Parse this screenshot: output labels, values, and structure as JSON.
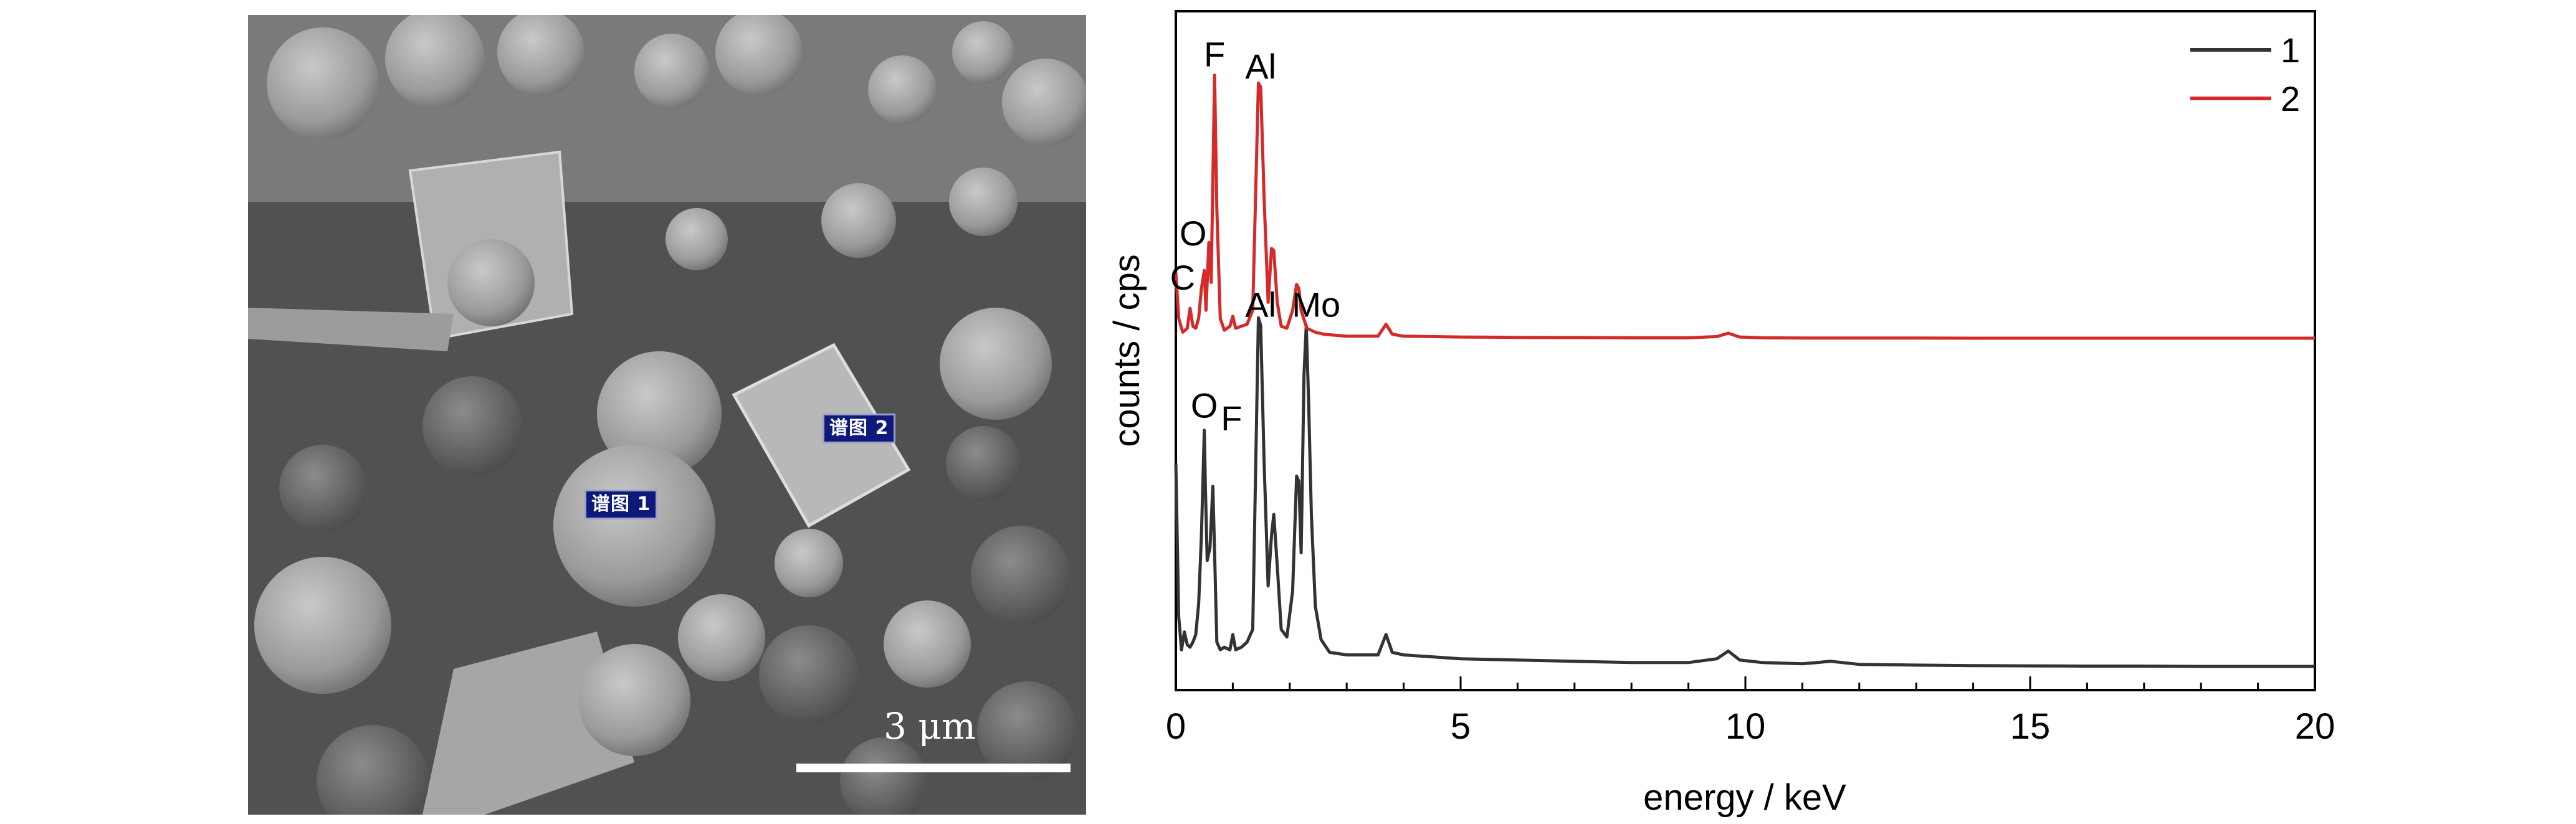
{
  "sem_image": {
    "spectrum_tags": [
      "谱图 1",
      "谱图 2"
    ],
    "scale_bar_label": "3 μm"
  },
  "chart_data": {
    "type": "line",
    "xlabel": "energy / keV",
    "ylabel": "counts / cps",
    "xlim": [
      0,
      20
    ],
    "xticks": [
      "0",
      "5",
      "10",
      "15",
      "20"
    ],
    "yticks_labeled": false,
    "grid": false,
    "legend_position": "top-right",
    "series": [
      {
        "name": "1",
        "color": "#333333",
        "x": [
          0.0,
          0.05,
          0.1,
          0.15,
          0.2,
          0.25,
          0.3,
          0.35,
          0.4,
          0.45,
          0.5,
          0.52,
          0.55,
          0.6,
          0.65,
          0.68,
          0.72,
          0.78,
          0.85,
          0.95,
          1.0,
          1.05,
          1.15,
          1.25,
          1.35,
          1.45,
          1.49,
          1.55,
          1.62,
          1.68,
          1.72,
          1.78,
          1.85,
          1.95,
          2.05,
          2.12,
          2.16,
          2.2,
          2.25,
          2.29,
          2.33,
          2.38,
          2.45,
          2.55,
          2.7,
          3.0,
          3.4,
          3.55,
          3.69,
          3.8,
          4.0,
          5.0,
          6.0,
          7.0,
          8.0,
          9.0,
          9.5,
          9.7,
          9.9,
          10.3,
          11.0,
          11.5,
          12.0,
          13.0,
          14.0,
          15.0,
          16.0,
          17.0,
          18.0,
          19.0,
          20.0
        ],
        "y": [
          0.8,
          0.2,
          0.07,
          0.14,
          0.09,
          0.08,
          0.1,
          0.13,
          0.25,
          0.52,
          0.93,
          0.7,
          0.42,
          0.47,
          0.71,
          0.45,
          0.1,
          0.07,
          0.08,
          0.07,
          0.13,
          0.07,
          0.08,
          0.1,
          0.15,
          1.37,
          1.34,
          0.8,
          0.32,
          0.52,
          0.6,
          0.4,
          0.15,
          0.12,
          0.3,
          0.75,
          0.73,
          0.45,
          1.15,
          1.34,
          1.05,
          0.6,
          0.24,
          0.11,
          0.06,
          0.05,
          0.05,
          0.05,
          0.13,
          0.06,
          0.05,
          0.035,
          0.03,
          0.025,
          0.02,
          0.02,
          0.035,
          0.065,
          0.03,
          0.02,
          0.015,
          0.025,
          0.013,
          0.01,
          0.008,
          0.007,
          0.006,
          0.006,
          0.005,
          0.005,
          0.005
        ]
      },
      {
        "name": "2",
        "color": "#d42a2a",
        "x": [
          0.0,
          0.05,
          0.12,
          0.2,
          0.25,
          0.3,
          0.35,
          0.4,
          0.45,
          0.5,
          0.53,
          0.58,
          0.62,
          0.68,
          0.72,
          0.78,
          0.85,
          0.95,
          1.0,
          1.05,
          1.15,
          1.25,
          1.35,
          1.45,
          1.49,
          1.55,
          1.62,
          1.68,
          1.72,
          1.78,
          1.85,
          1.95,
          2.05,
          2.12,
          2.16,
          2.2,
          2.3,
          2.45,
          2.6,
          2.8,
          3.0,
          3.4,
          3.55,
          3.69,
          3.8,
          4.0,
          5.0,
          6.0,
          7.0,
          8.0,
          9.0,
          9.5,
          9.7,
          9.9,
          10.3,
          11.0,
          12.0,
          13.0,
          14.0,
          15.0,
          16.0,
          17.0,
          18.0,
          19.0,
          20.0
        ],
        "y": [
          0.33,
          0.1,
          0.03,
          0.05,
          0.15,
          0.06,
          0.05,
          0.1,
          0.25,
          0.34,
          0.14,
          0.48,
          0.28,
          1.32,
          0.65,
          0.1,
          0.04,
          0.06,
          0.11,
          0.05,
          0.06,
          0.07,
          0.14,
          1.28,
          1.26,
          0.7,
          0.18,
          0.45,
          0.44,
          0.18,
          0.06,
          0.05,
          0.14,
          0.27,
          0.25,
          0.14,
          0.05,
          0.03,
          0.02,
          0.015,
          0.01,
          0.01,
          0.01,
          0.07,
          0.02,
          0.01,
          0.006,
          0.004,
          0.003,
          0.002,
          0.002,
          0.008,
          0.025,
          0.006,
          0.002,
          0.001,
          0.001,
          0.001,
          0.0,
          0.0,
          0.0,
          0.0,
          0.0,
          0.0,
          0.0
        ]
      }
    ],
    "annotations": [
      {
        "text": "F",
        "series": "2",
        "x": 0.68
      },
      {
        "text": "Al",
        "series": "2",
        "x": 1.49
      },
      {
        "text": "O",
        "series": "2",
        "x": 0.5
      },
      {
        "text": "C",
        "series": "2",
        "x": 0.25
      },
      {
        "text": "Al",
        "series": "1",
        "x": 1.49
      },
      {
        "text": "Mo",
        "series": "1",
        "x": 2.29
      },
      {
        "text": "O",
        "series": "1",
        "x": 0.5
      },
      {
        "text": "F",
        "series": "1",
        "x": 0.65
      }
    ]
  }
}
